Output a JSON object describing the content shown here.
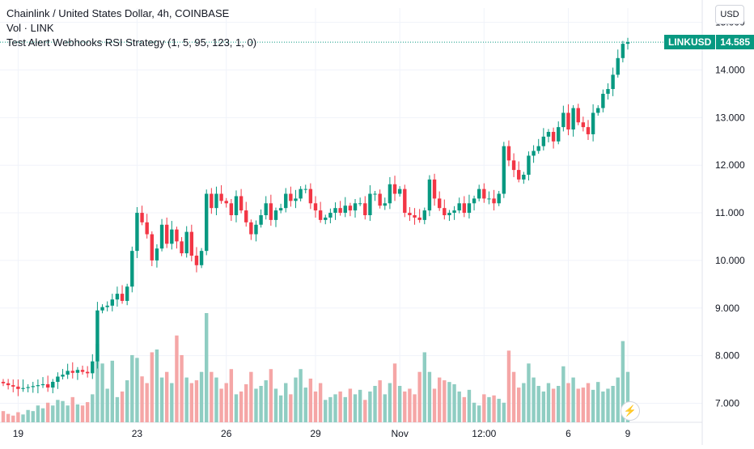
{
  "header": {
    "title": "Chainlink / United States Dollar, 4h, COINBASE",
    "volume_label": "Vol · LINK",
    "strategy_label": "Test Alert Webhooks RSI Strategy (1, 5, 95, 123, 1, 0)"
  },
  "currency_button": "USD",
  "last_price": {
    "symbol": "LINKUSD",
    "value": "14.585"
  },
  "colors": {
    "up": "#089981",
    "down": "#f23645",
    "up_vol": "#8fcdc2",
    "down_vol": "#f5a6a6",
    "grid": "#f0f3fa"
  },
  "alert_icon": "lightning-icon",
  "chart_data": {
    "type": "candlestick",
    "ylim": [
      6.6,
      15.3
    ],
    "y_ticks": [
      "7.000",
      "8.000",
      "9.000",
      "10.000",
      "11.000",
      "12.000",
      "13.000",
      "14.000",
      "15.000"
    ],
    "x_ticks": [
      "19",
      "23",
      "26",
      "29",
      "Nov",
      "12:00",
      "6",
      "9"
    ],
    "close": [
      7.42,
      7.38,
      7.35,
      7.3,
      7.32,
      7.34,
      7.36,
      7.38,
      7.4,
      7.33,
      7.45,
      7.56,
      7.6,
      7.68,
      7.64,
      7.7,
      7.66,
      7.63,
      7.88,
      8.95,
      9.02,
      9.05,
      9.18,
      9.3,
      9.15,
      9.45,
      10.2,
      11.0,
      10.8,
      10.55,
      10.0,
      10.25,
      10.75,
      10.35,
      10.65,
      10.4,
      10.15,
      10.6,
      10.1,
      9.9,
      10.2,
      11.4,
      11.1,
      11.4,
      11.25,
      11.2,
      10.95,
      11.35,
      11.05,
      10.8,
      10.55,
      10.75,
      10.95,
      11.2,
      10.85,
      11.05,
      11.1,
      11.4,
      11.25,
      11.3,
      11.5,
      11.5,
      11.2,
      11.05,
      10.85,
      10.9,
      11.0,
      11.1,
      11.0,
      11.15,
      11.05,
      11.2,
      11.2,
      10.95,
      11.4,
      11.4,
      11.15,
      11.2,
      11.6,
      11.4,
      11.5,
      11.0,
      10.95,
      10.9,
      10.85,
      11.05,
      11.7,
      11.3,
      11.1,
      10.95,
      11.0,
      11.05,
      11.2,
      11.0,
      11.2,
      11.3,
      11.5,
      11.3,
      11.3,
      11.2,
      11.4,
      12.4,
      12.1,
      11.9,
      11.7,
      11.8,
      12.2,
      12.3,
      12.4,
      12.6,
      12.7,
      12.5,
      12.8,
      13.1,
      12.75,
      13.2,
      12.9,
      12.8,
      12.65,
      13.1,
      13.2,
      13.5,
      13.6,
      13.9,
      14.25,
      14.55,
      14.585
    ],
    "open": [
      7.45,
      7.42,
      7.38,
      7.35,
      7.3,
      7.32,
      7.34,
      7.36,
      7.38,
      7.4,
      7.33,
      7.45,
      7.56,
      7.6,
      7.68,
      7.64,
      7.7,
      7.66,
      7.63,
      7.88,
      8.95,
      9.02,
      9.05,
      9.18,
      9.3,
      9.15,
      9.45,
      10.2,
      11.0,
      10.8,
      10.55,
      10.0,
      10.25,
      10.75,
      10.35,
      10.65,
      10.4,
      10.15,
      10.6,
      10.1,
      9.9,
      10.2,
      11.4,
      11.1,
      11.4,
      11.25,
      11.2,
      10.95,
      11.35,
      11.05,
      10.8,
      10.55,
      10.75,
      10.95,
      11.2,
      10.85,
      11.05,
      11.1,
      11.4,
      11.25,
      11.3,
      11.5,
      11.5,
      11.2,
      11.05,
      10.85,
      10.9,
      11.0,
      11.1,
      11.0,
      11.15,
      11.05,
      11.2,
      11.2,
      10.95,
      11.4,
      11.4,
      11.15,
      11.2,
      11.6,
      11.4,
      11.5,
      11.0,
      10.95,
      10.9,
      10.85,
      11.05,
      11.7,
      11.3,
      11.1,
      10.95,
      11.0,
      11.05,
      11.2,
      11.0,
      11.2,
      11.3,
      11.5,
      11.3,
      11.3,
      11.2,
      11.4,
      12.4,
      12.1,
      11.9,
      11.7,
      11.8,
      12.2,
      12.3,
      12.4,
      12.6,
      12.7,
      12.5,
      12.8,
      13.1,
      12.75,
      13.2,
      12.9,
      12.8,
      12.65,
      13.1,
      13.2,
      13.5,
      13.6,
      13.9,
      14.25,
      14.55
    ],
    "volume": [
      0.2,
      0.15,
      0.12,
      0.18,
      0.14,
      0.22,
      0.2,
      0.3,
      0.25,
      0.35,
      0.3,
      0.4,
      0.38,
      0.3,
      0.45,
      0.32,
      0.3,
      0.36,
      0.5,
      1.4,
      1.05,
      0.6,
      1.1,
      0.45,
      0.55,
      0.75,
      1.2,
      1.15,
      0.82,
      0.7,
      1.25,
      1.3,
      0.8,
      0.9,
      0.7,
      1.55,
      1.2,
      0.8,
      0.7,
      0.75,
      0.9,
      1.95,
      0.9,
      0.8,
      0.6,
      0.7,
      0.95,
      0.5,
      0.55,
      0.68,
      0.9,
      0.6,
      0.65,
      0.75,
      0.95,
      0.6,
      0.48,
      0.7,
      0.5,
      0.8,
      0.95,
      0.62,
      0.78,
      0.55,
      0.7,
      0.4,
      0.45,
      0.5,
      0.55,
      0.45,
      0.6,
      0.5,
      0.58,
      0.4,
      0.55,
      0.65,
      0.75,
      0.5,
      0.7,
      1.05,
      0.65,
      0.55,
      0.6,
      0.5,
      0.9,
      1.25,
      0.9,
      0.6,
      0.8,
      0.75,
      0.72,
      0.68,
      0.55,
      0.45,
      0.58,
      0.35,
      0.3,
      0.5,
      0.45,
      0.48,
      0.42,
      0.35,
      1.28,
      0.9,
      0.62,
      0.7,
      1.05,
      0.8,
      0.65,
      0.55,
      0.7,
      0.6,
      0.65,
      1.0,
      0.7,
      0.8,
      0.6,
      0.62,
      0.7,
      0.58,
      0.72,
      0.55,
      0.6,
      0.65,
      0.8,
      1.45,
      0.9
    ]
  }
}
